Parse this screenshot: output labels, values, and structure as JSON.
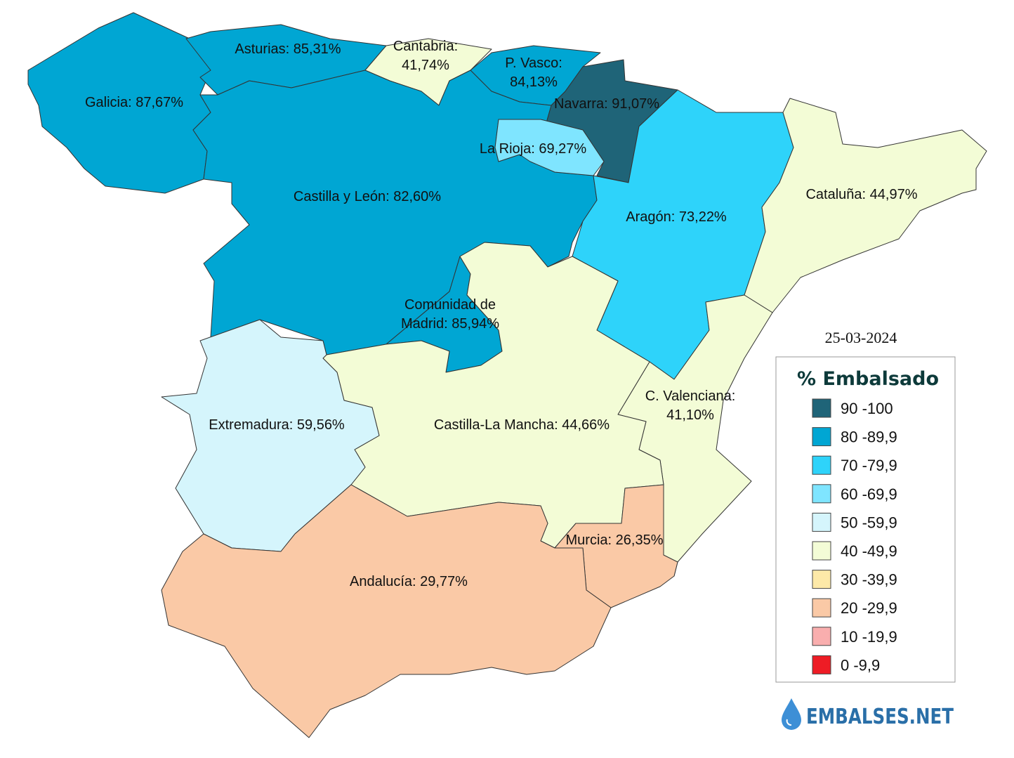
{
  "map": {
    "regions": [
      {
        "lines": [
          "Galicia: 87,67%"
        ],
        "color": "#00a6d3"
      },
      {
        "lines": [
          "Asturias: 85,31%"
        ],
        "color": "#00a6d3"
      },
      {
        "lines": [
          "Cantabria:",
          "41,74%"
        ],
        "color": "#f3fcd6"
      },
      {
        "lines": [
          "P. Vasco:",
          "84,13%"
        ],
        "color": "#00a6d3"
      },
      {
        "lines": [
          "Navarra: 91,07%"
        ],
        "color": "#1f6478"
      },
      {
        "lines": [
          "La Rioja: 69,27%"
        ],
        "color": "#7fe5ff"
      },
      {
        "lines": [
          "Castilla y León: 82,60%"
        ],
        "color": "#00a6d3"
      },
      {
        "lines": [
          "Comunidad de",
          "Madrid: 85,94%"
        ],
        "color": "#00a6d3"
      },
      {
        "lines": [
          "Aragón: 73,22%"
        ],
        "color": "#2ed3fa"
      },
      {
        "lines": [
          "Cataluña: 44,97%"
        ],
        "color": "#f3fcd6"
      },
      {
        "lines": [
          "C. Valenciana:",
          "41,10%"
        ],
        "color": "#f3fcd6"
      },
      {
        "lines": [
          "Castilla-La Mancha: 44,66%"
        ],
        "color": "#f3fcd6"
      },
      {
        "lines": [
          "Extremadura: 59,56%"
        ],
        "color": "#d5f5fc"
      },
      {
        "lines": [
          "Murcia: 26,35%"
        ],
        "color": "#fac9a6"
      },
      {
        "lines": [
          "Andalucía: 29,77%"
        ],
        "color": "#fac9a6"
      }
    ],
    "date": "25-03-2024",
    "legend": {
      "title": "% Embalsado",
      "items": [
        {
          "label": "90 -100",
          "color": "#1f6478"
        },
        {
          "label": "80 -89,9",
          "color": "#00a6d3"
        },
        {
          "label": "70 -79,9",
          "color": "#2ed3fa"
        },
        {
          "label": "60 -69,9",
          "color": "#7fe5ff"
        },
        {
          "label": "50 -59,9",
          "color": "#d5f5fc"
        },
        {
          "label": "40 -49,9",
          "color": "#f3fcd6"
        },
        {
          "label": "30 -39,9",
          "color": "#fde9a8"
        },
        {
          "label": "20 -29,9",
          "color": "#fac9a6"
        },
        {
          "label": "10 -19,9",
          "color": "#f9aeae"
        },
        {
          "label": "0 -9,9",
          "color": "#ee1c25"
        }
      ]
    },
    "logo": "EMBALSES.NET"
  }
}
